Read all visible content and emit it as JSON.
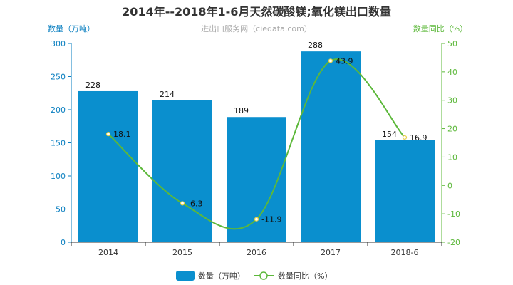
{
  "chart_data": {
    "type": "bar",
    "title": "2014年--2018年1-6月天然碳酸镁;氧化镁出口数量",
    "subtitle": "进出口服务网（ciedata.com）",
    "categories": [
      "2014",
      "2015",
      "2016",
      "2017",
      "2018-6"
    ],
    "series": [
      {
        "name": "数量（万吨）",
        "type": "bar",
        "axis": "left",
        "values": [
          228,
          214,
          189,
          288,
          154
        ],
        "color": "#0a8fce"
      },
      {
        "name": "数量同比（%）",
        "type": "line",
        "axis": "right",
        "values": [
          18.1,
          -6.3,
          -11.9,
          43.9,
          16.9
        ],
        "color": "#5cb83a"
      }
    ],
    "ylabel_left": "数量（万吨）",
    "ylabel_right": "数量同比（%）",
    "ylim_left": [
      0,
      300
    ],
    "yticks_left": [
      "0",
      "50",
      "100",
      "150",
      "200",
      "250",
      "300"
    ],
    "ylim_right": [
      -20,
      50
    ],
    "yticks_right": [
      "-20",
      "-10",
      "0",
      "10",
      "20",
      "30",
      "40",
      "50"
    ],
    "grid": false,
    "legend": "bottom-center"
  }
}
